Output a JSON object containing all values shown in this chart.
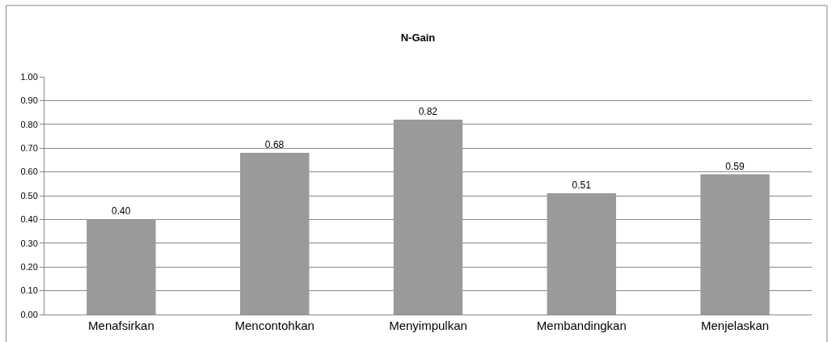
{
  "chart_data": {
    "type": "bar",
    "title": "N-Gain",
    "categories": [
      "Menafsirkan",
      "Mencontohkan",
      "Menyimpulkan",
      "Membandingkan",
      "Menjelaskan"
    ],
    "values": [
      0.4,
      0.68,
      0.82,
      0.51,
      0.59
    ],
    "color": "#9a9a9a",
    "ylim": [
      0,
      1
    ],
    "yticks": [
      {
        "value": 0,
        "label": "0.00"
      },
      {
        "value": 0.1,
        "label": "0.10"
      },
      {
        "value": 0.2,
        "label": "0.20"
      },
      {
        "value": 0.3,
        "label": "0.30"
      },
      {
        "value": 0.4,
        "label": "0.40"
      },
      {
        "value": 0.5,
        "label": "0.50"
      },
      {
        "value": 0.6,
        "label": "0.60"
      },
      {
        "value": 0.7,
        "label": "0.70"
      },
      {
        "value": 0.8,
        "label": "0.80"
      },
      {
        "value": 0.9,
        "label": "0.90"
      },
      {
        "value": 1,
        "label": "1.00"
      }
    ],
    "value_labels": [
      "0.40",
      "0.68",
      "0.82",
      "0.51",
      "0.59"
    ],
    "grid": "y",
    "legend": false
  }
}
